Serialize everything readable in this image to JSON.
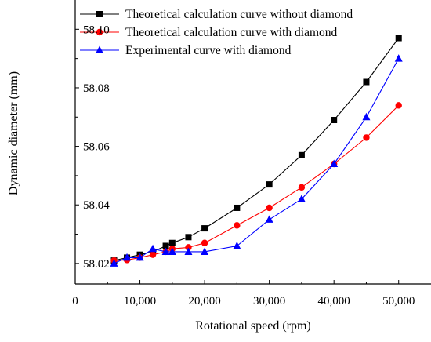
{
  "chart_data": {
    "type": "line",
    "xlabel": "Rotational speed (rpm)",
    "ylabel": "Dynamic diameter (mm)",
    "xlim": [
      0,
      55000
    ],
    "ylim": [
      58.013,
      58.11
    ],
    "xticks": [
      0,
      10000,
      20000,
      30000,
      40000,
      50000
    ],
    "xtick_labels": [
      "0",
      "10,000",
      "20,000",
      "30,000",
      "40,000",
      "50,000"
    ],
    "yticks": [
      58.02,
      58.04,
      58.06,
      58.08,
      58.1
    ],
    "ytick_labels": [
      "58.02",
      "58.04",
      "58.06",
      "58.08",
      "58.10"
    ],
    "grid": false,
    "legend_position": "top",
    "series": [
      {
        "name": "Theoretical calculation curve without diamond",
        "color": "#000000",
        "marker": "square",
        "points": [
          [
            6000,
            58.021
          ],
          [
            8000,
            58.022
          ],
          [
            10000,
            58.023
          ],
          [
            12000,
            58.024
          ],
          [
            14000,
            58.026
          ],
          [
            15000,
            58.027
          ],
          [
            17500,
            58.029
          ],
          [
            20000,
            58.032
          ],
          [
            25000,
            58.039
          ],
          [
            30000,
            58.047
          ],
          [
            35000,
            58.057
          ],
          [
            40000,
            58.069
          ],
          [
            45000,
            58.082
          ],
          [
            50000,
            58.097
          ]
        ]
      },
      {
        "name": "Theoretical calculation curve with diamond",
        "color": "#ff0000",
        "marker": "circle",
        "points": [
          [
            6000,
            58.021
          ],
          [
            8000,
            58.0212
          ],
          [
            10000,
            58.022
          ],
          [
            12000,
            58.023
          ],
          [
            14000,
            58.024
          ],
          [
            15000,
            58.025
          ],
          [
            17500,
            58.0255
          ],
          [
            20000,
            58.027
          ],
          [
            25000,
            58.033
          ],
          [
            30000,
            58.039
          ],
          [
            35000,
            58.046
          ],
          [
            40000,
            58.054
          ],
          [
            45000,
            58.063
          ],
          [
            50000,
            58.074
          ]
        ]
      },
      {
        "name": "Experimental curve with diamond",
        "color": "#0000ff",
        "marker": "triangle",
        "points": [
          [
            6000,
            58.02
          ],
          [
            8000,
            58.022
          ],
          [
            10000,
            58.022
          ],
          [
            12000,
            58.025
          ],
          [
            14000,
            58.024
          ],
          [
            15000,
            58.024
          ],
          [
            17500,
            58.024
          ],
          [
            20000,
            58.024
          ],
          [
            25000,
            58.026
          ],
          [
            30000,
            58.035
          ],
          [
            35000,
            58.042
          ],
          [
            40000,
            58.054
          ],
          [
            45000,
            58.07
          ],
          [
            50000,
            58.09
          ]
        ]
      }
    ]
  }
}
